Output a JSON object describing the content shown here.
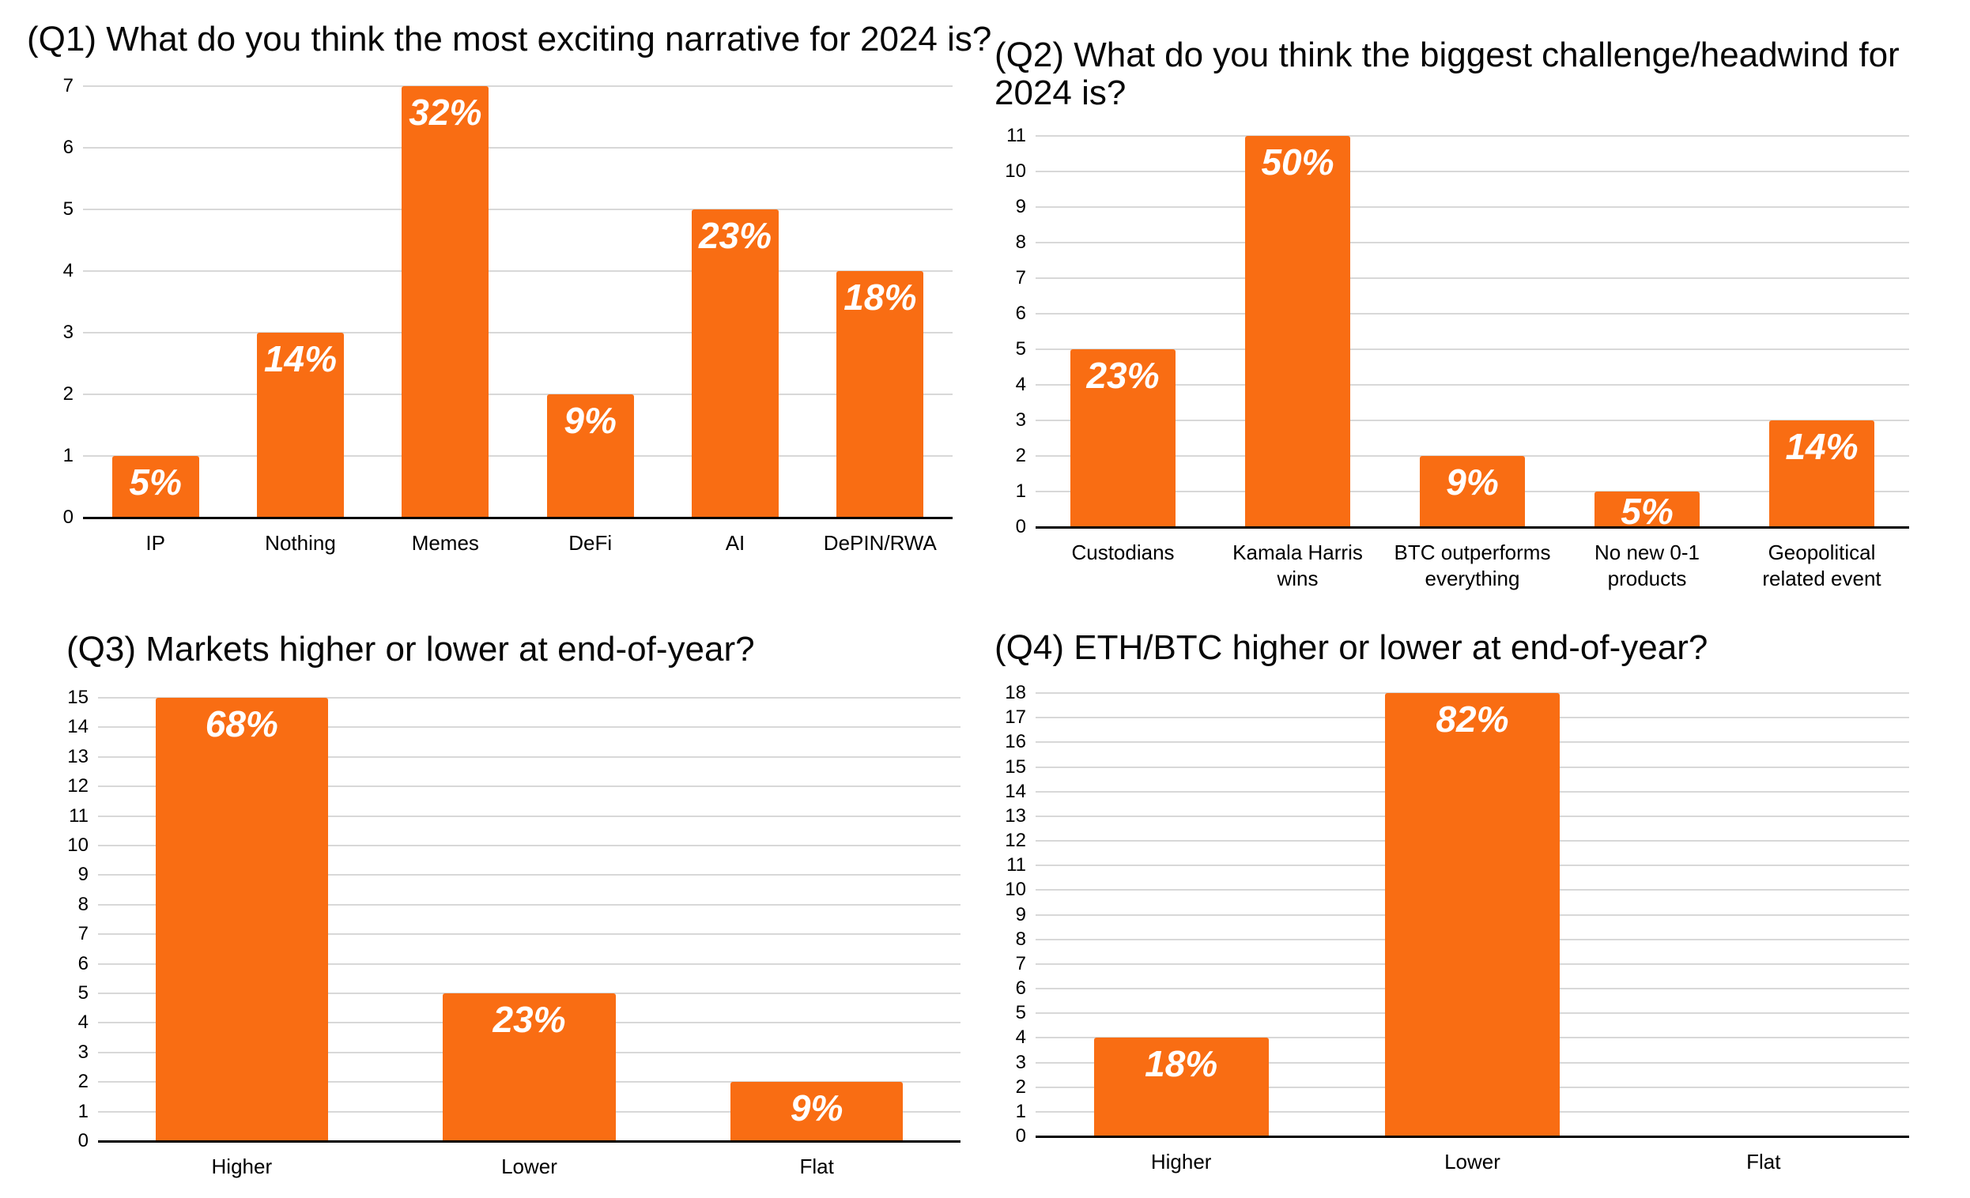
{
  "page": {
    "background": "#ffffff"
  },
  "colors": {
    "bar_fill": "#F96D13",
    "gridline": "#D8D8D8",
    "axis_line": "#000000",
    "bar_label_text": "#FFFFFF",
    "chart_text": "#070707"
  },
  "chart_data": [
    {
      "type": "bar",
      "title": "(Q1) What do you think the most exciting narrative for 2024 is?",
      "categories": [
        "IP",
        "Nothing",
        "Memes",
        "DeFi",
        "AI",
        "DePIN/RWA"
      ],
      "values": [
        1,
        3,
        7,
        2,
        5,
        4
      ],
      "value_labels": [
        "5%",
        "14%",
        "32%",
        "9%",
        "23%",
        "18%"
      ],
      "xlabel": "",
      "ylabel": "",
      "ylim": [
        0,
        7
      ],
      "ytick_step": 1,
      "grid": true,
      "legend": "none"
    },
    {
      "type": "bar",
      "title": "(Q2) What do you think the biggest challenge/headwind for 2024 is?",
      "categories": [
        "Custodians",
        "Kamala Harris wins",
        "BTC outperforms everything",
        "No new 0-1 products",
        "Geopolitical related event"
      ],
      "values": [
        5,
        11,
        2,
        1,
        3
      ],
      "value_labels": [
        "23%",
        "50%",
        "9%",
        "5%",
        "14%"
      ],
      "xlabel": "",
      "ylabel": "",
      "ylim": [
        0,
        11
      ],
      "ytick_step": 1,
      "grid": true,
      "legend": "none"
    },
    {
      "type": "bar",
      "title": "(Q3) Markets higher or lower at end-of-year?",
      "categories": [
        "Higher",
        "Lower",
        "Flat"
      ],
      "values": [
        15,
        5,
        2
      ],
      "value_labels": [
        "68%",
        "23%",
        "9%"
      ],
      "xlabel": "",
      "ylabel": "",
      "ylim": [
        0,
        15
      ],
      "ytick_step": 1,
      "grid": true,
      "legend": "none"
    },
    {
      "type": "bar",
      "title": "(Q4) ETH/BTC higher or lower at end-of-year?",
      "categories": [
        "Higher",
        "Lower",
        "Flat"
      ],
      "values": [
        4,
        18,
        0
      ],
      "value_labels": [
        "18%",
        "82%",
        ""
      ],
      "xlabel": "",
      "ylabel": "",
      "ylim": [
        0,
        18
      ],
      "ytick_step": 1,
      "grid": true,
      "legend": "none"
    }
  ]
}
